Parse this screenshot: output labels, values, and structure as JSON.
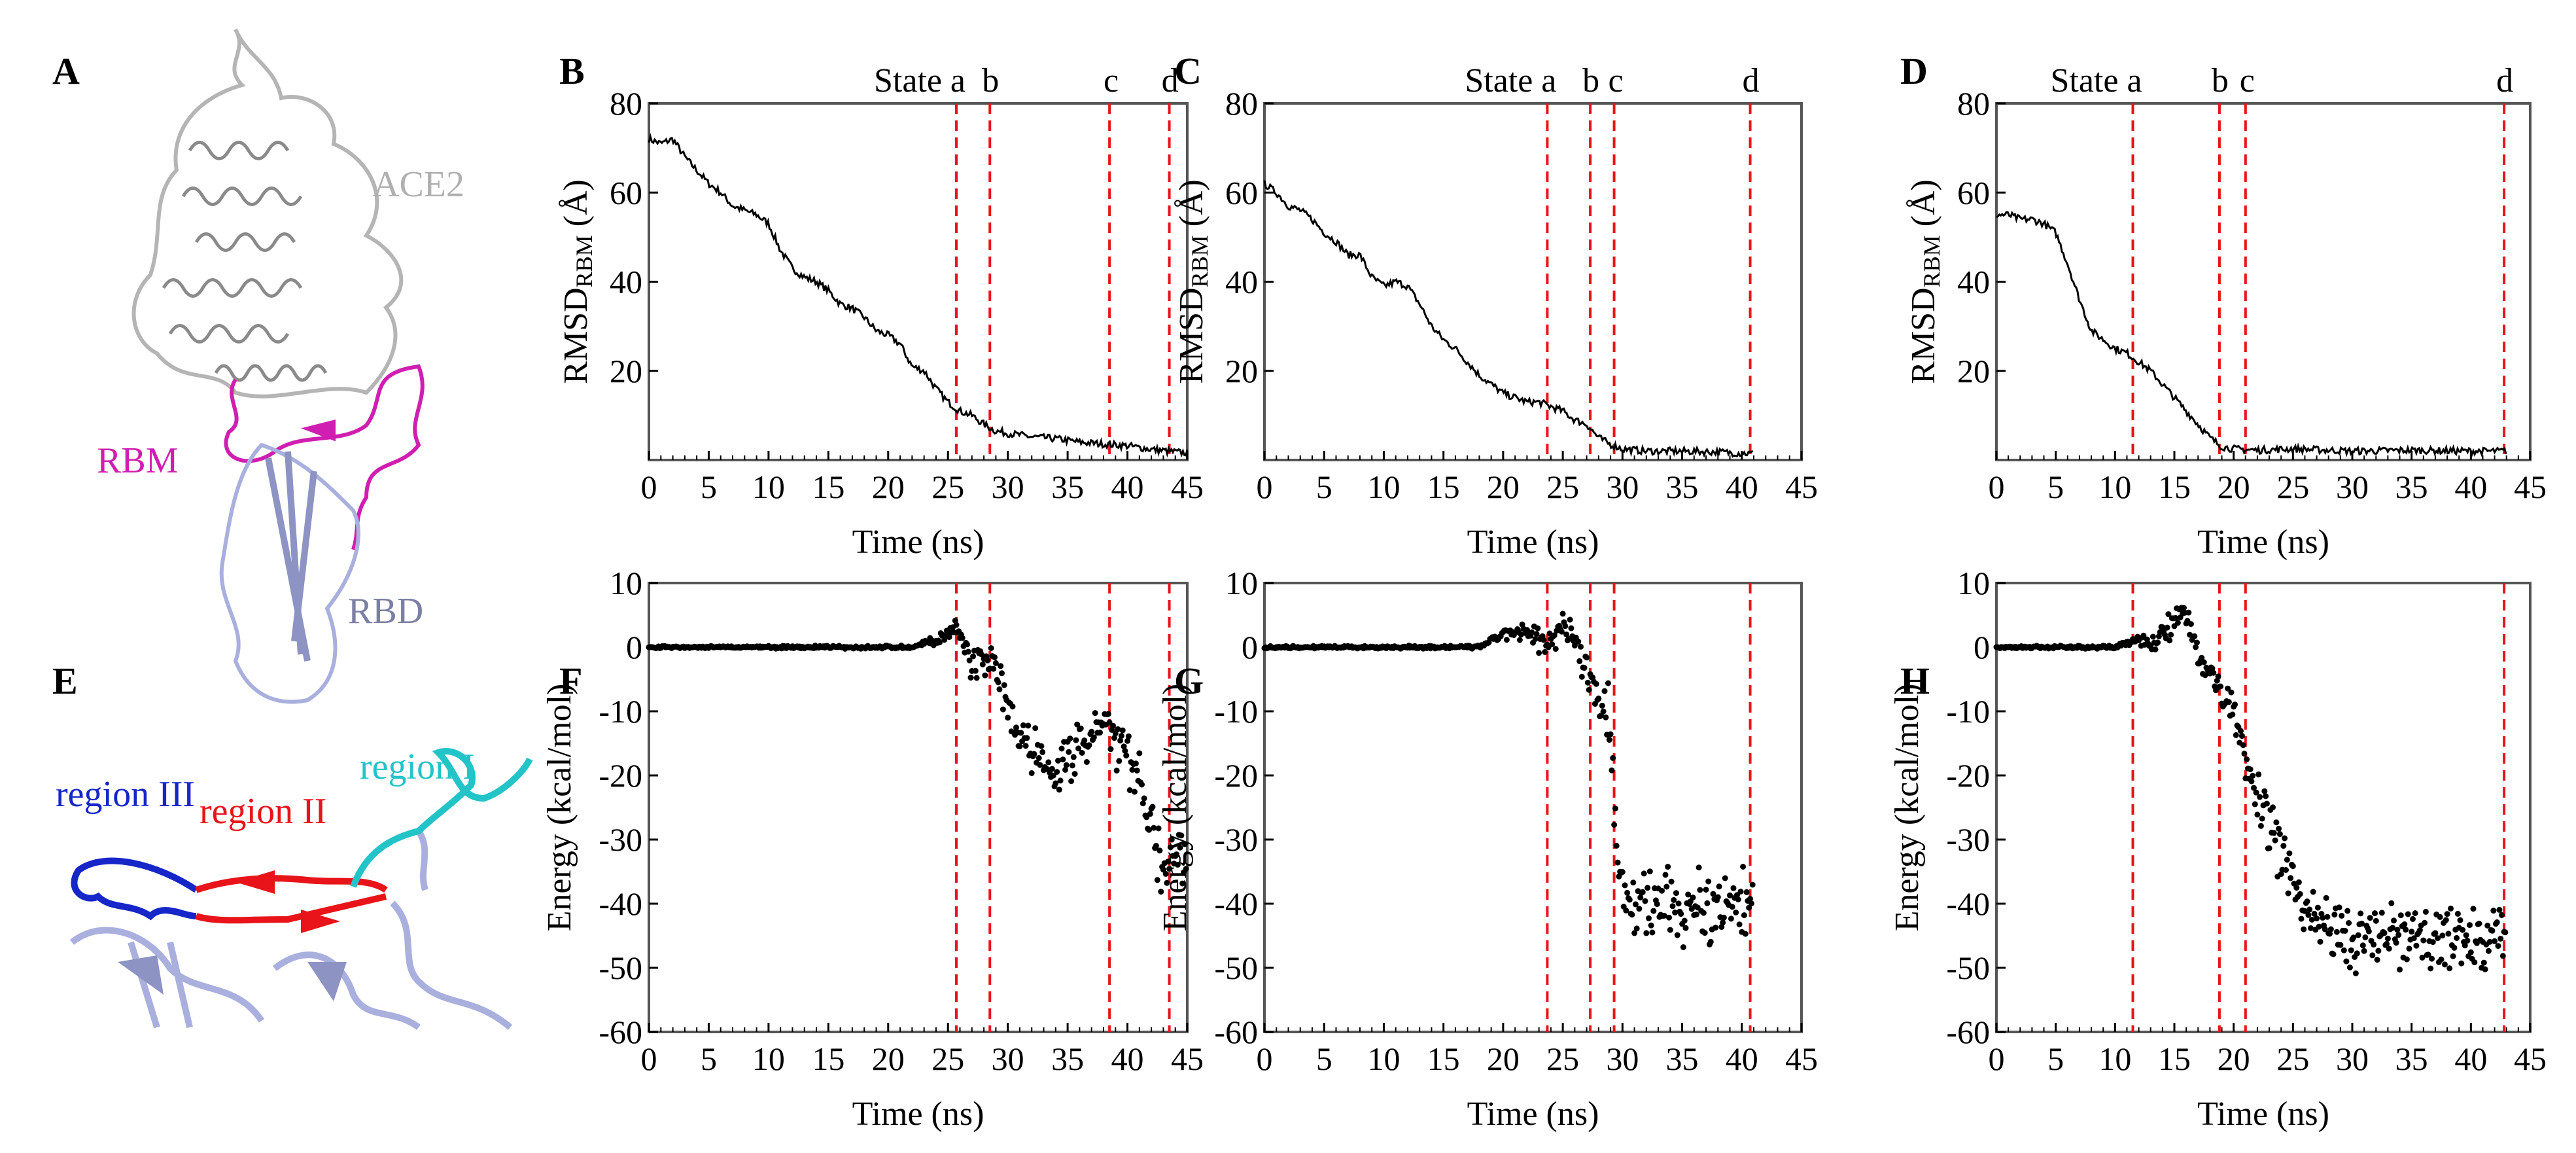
{
  "panel_labels": [
    "A",
    "B",
    "C",
    "D",
    "E",
    "F",
    "G",
    "H"
  ],
  "panel_a": {
    "ace2_label": "ACE2",
    "rbm_label": "RBM",
    "rbd_label": "RBD",
    "colors": {
      "ace2": "#b9b9b9",
      "rbm": "#d01fb0",
      "rbd": "#a9b0dd",
      "rbd_text": "#7a7fa3"
    }
  },
  "panel_e": {
    "region1": "region I",
    "region2": "region II",
    "region3": "region III",
    "colors": {
      "region1": "#22c4c8",
      "region2": "#e8141a",
      "region3": "#1626c8",
      "rbd": "#a9b0dd"
    }
  },
  "colors": {
    "line": "#000000",
    "vline": "#e8141a"
  },
  "chart_data": [
    {
      "panel": "B",
      "type": "line",
      "xlabel": "Time (ns)",
      "ylabel": "RMSD",
      "ylabel_sub": "RBM",
      "ylabel_unit": " (Å)",
      "xlim": [
        0,
        45
      ],
      "ylim": [
        0,
        80
      ],
      "xticks": [
        0,
        5,
        10,
        15,
        20,
        25,
        30,
        35,
        40,
        45
      ],
      "yticks": [
        20,
        40,
        60,
        80
      ],
      "states": [
        {
          "label": "State a",
          "x": 25.7
        },
        {
          "label": "b",
          "x": 28.5
        },
        {
          "label": "c",
          "x": 38.5
        },
        {
          "label": "d",
          "x": 43.5
        }
      ],
      "x": [
        0,
        1,
        2,
        3,
        4,
        5,
        6,
        7,
        8,
        9,
        10,
        11,
        12,
        13,
        14,
        15,
        16,
        17,
        18,
        19,
        20,
        21,
        22,
        23,
        24,
        25,
        26,
        27,
        28,
        29,
        30,
        32,
        34,
        36,
        38,
        40,
        42,
        44,
        45
      ],
      "y": [
        72,
        71,
        72,
        68,
        65,
        62,
        60,
        57,
        56,
        55,
        53,
        47,
        43,
        41,
        40,
        38,
        35,
        34,
        32,
        29,
        28,
        26,
        21,
        20,
        16,
        13,
        11,
        10,
        8,
        6.5,
        6,
        5.2,
        4.8,
        4,
        3.6,
        3.2,
        2.4,
        1.8,
        1.6
      ]
    },
    {
      "panel": "C",
      "type": "line",
      "xlabel": "Time (ns)",
      "ylabel": "RMSD",
      "ylabel_sub": "RBM",
      "ylabel_unit": " (Å)",
      "xlim": [
        0,
        45
      ],
      "ylim": [
        0,
        80
      ],
      "xticks": [
        0,
        5,
        10,
        15,
        20,
        25,
        30,
        35,
        40,
        45
      ],
      "yticks": [
        20,
        40,
        60,
        80
      ],
      "states": [
        {
          "label": "State a",
          "x": 23.7
        },
        {
          "label": "b",
          "x": 27.3
        },
        {
          "label": "c",
          "x": 29.3
        },
        {
          "label": "d",
          "x": 40.7
        }
      ],
      "x": [
        0,
        1,
        2,
        3,
        4,
        5,
        6,
        7,
        8,
        9,
        10,
        11,
        12,
        13,
        14,
        15,
        16,
        17,
        18,
        19,
        20,
        21,
        22,
        23,
        24,
        25,
        26,
        27,
        28,
        29,
        30,
        32,
        35,
        38,
        40,
        41
      ],
      "y": [
        62,
        60,
        57,
        56,
        54,
        51,
        49,
        46,
        46,
        41,
        39,
        40,
        39,
        35,
        30,
        27,
        25,
        22,
        19,
        17,
        15,
        14,
        13,
        13,
        12,
        11,
        9,
        8,
        5,
        3.5,
        2.5,
        2,
        2,
        1.8,
        1.5,
        1.5
      ]
    },
    {
      "panel": "D",
      "type": "line",
      "xlabel": "Time (ns)",
      "ylabel": "RMSD",
      "ylabel_sub": "RBM",
      "ylabel_unit": " (Å)",
      "xlim": [
        0,
        45
      ],
      "ylim": [
        0,
        80
      ],
      "xticks": [
        0,
        5,
        10,
        15,
        20,
        25,
        30,
        35,
        40,
        45
      ],
      "yticks": [
        20,
        40,
        60,
        80
      ],
      "states": [
        {
          "label": "State a",
          "x": 11.5
        },
        {
          "label": "b",
          "x": 18.8
        },
        {
          "label": "c",
          "x": 21
        },
        {
          "label": "d",
          "x": 42.8
        }
      ],
      "x": [
        0,
        1,
        2,
        3,
        4,
        5,
        6,
        7,
        8,
        9,
        10,
        11,
        12,
        13,
        14,
        15,
        16,
        17,
        18,
        19,
        20,
        22,
        25,
        30,
        35,
        40,
        43
      ],
      "y": [
        55,
        55,
        54,
        54,
        53,
        51,
        44,
        36,
        29,
        27,
        25,
        24,
        22,
        20,
        17,
        14,
        11,
        8,
        5,
        3,
        2.5,
        2.2,
        2.5,
        2,
        2.2,
        2,
        2
      ]
    },
    {
      "panel": "F",
      "type": "scatter",
      "xlabel": "Time (ns)",
      "ylabel": "Energy (kcal/mol)",
      "xlim": [
        0,
        45
      ],
      "ylim": [
        -60,
        10
      ],
      "xticks": [
        0,
        5,
        10,
        15,
        20,
        25,
        30,
        35,
        40,
        45
      ],
      "yticks": [
        10,
        0,
        -10,
        -20,
        -30,
        -40,
        -50,
        -60
      ],
      "states": [
        {
          "x": 25.7
        },
        {
          "x": 28.5
        },
        {
          "x": 38.5
        },
        {
          "x": 43.5
        }
      ],
      "trend_x": [
        0,
        22,
        24,
        25.7,
        27,
        28.5,
        30,
        32,
        34,
        36,
        38,
        39,
        41,
        42,
        43,
        45
      ],
      "trend_y": [
        0,
        0,
        1,
        3,
        -3,
        -2,
        -10,
        -17,
        -20,
        -15,
        -12,
        -15,
        -20,
        -28,
        -35,
        -32
      ],
      "spread": [
        0.2,
        0.3,
        1,
        1.5,
        4,
        4,
        5,
        5,
        5,
        5,
        5,
        6,
        6,
        6,
        6,
        6
      ],
      "x_end": 45
    },
    {
      "panel": "G",
      "type": "scatter",
      "xlabel": "Time (ns)",
      "ylabel": "Energy (kcal/mol)",
      "xlim": [
        0,
        45
      ],
      "ylim": [
        -60,
        10
      ],
      "xticks": [
        0,
        5,
        10,
        15,
        20,
        25,
        30,
        35,
        40,
        45
      ],
      "yticks": [
        10,
        0,
        -10,
        -20,
        -30,
        -40,
        -50,
        -60
      ],
      "states": [
        {
          "x": 23.7
        },
        {
          "x": 27.3
        },
        {
          "x": 29.3
        },
        {
          "x": 40.7
        }
      ],
      "trend_x": [
        0,
        18,
        20,
        22,
        24,
        25,
        26,
        27,
        28,
        29,
        29.5,
        30,
        35,
        41
      ],
      "trend_y": [
        0,
        0,
        2,
        2,
        1,
        4,
        1,
        -3,
        -7,
        -12,
        -30,
        -40,
        -41,
        -40
      ],
      "spread": [
        0.2,
        0.3,
        1,
        2,
        3,
        3,
        3,
        4,
        5,
        6,
        6,
        7,
        7,
        7
      ],
      "x_end": 41
    },
    {
      "panel": "H",
      "type": "scatter",
      "xlabel": "Time (ns)",
      "ylabel": "Energy (kcal/mol)",
      "xlim": [
        0,
        45
      ],
      "ylim": [
        -60,
        10
      ],
      "xticks": [
        0,
        5,
        10,
        15,
        20,
        25,
        30,
        35,
        40,
        45
      ],
      "yticks": [
        10,
        0,
        -10,
        -20,
        -30,
        -40,
        -50,
        -60
      ],
      "states": [
        {
          "x": 11.5
        },
        {
          "x": 18.8
        },
        {
          "x": 21
        },
        {
          "x": 42.8
        }
      ],
      "trend_x": [
        0,
        10,
        11.5,
        13,
        15,
        16,
        17,
        18,
        19,
        20,
        21,
        22,
        23,
        25,
        27,
        30,
        35,
        43
      ],
      "trend_y": [
        0,
        0,
        1,
        1,
        4,
        5,
        -1,
        -4,
        -7,
        -10,
        -17,
        -22,
        -28,
        -37,
        -43,
        -46,
        -45,
        -46
      ],
      "spread": [
        0.2,
        0.3,
        1,
        2,
        3,
        3,
        3,
        3,
        3,
        4,
        4,
        5,
        5,
        5,
        6,
        6,
        6,
        6
      ],
      "x_end": 43
    }
  ]
}
